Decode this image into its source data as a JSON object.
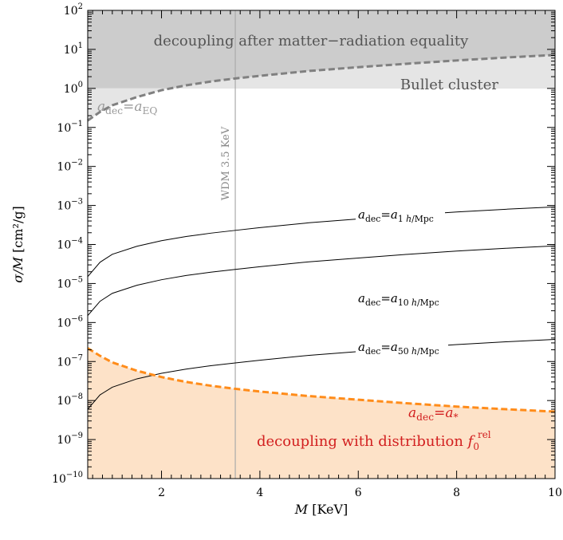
{
  "chart_data": {
    "type": "line",
    "xlabel": {
      "main": "M",
      "unit": " [KeV]"
    },
    "ylabel": {
      "main": "σ/M",
      "unit": " [cm²/g]"
    },
    "xlim": [
      0.5,
      10
    ],
    "ylim": [
      1e-10,
      100
    ],
    "yscale": "log",
    "x_ticks": [
      2,
      4,
      6,
      8,
      10
    ],
    "y_tick_exponents": [
      -10,
      -9,
      -8,
      -7,
      -6,
      -5,
      -4,
      -3,
      -2,
      -1,
      0,
      1,
      2
    ],
    "colors": {
      "top_region": "#cccccc",
      "bullet_region": "#e5e5e5",
      "bottom_region": "#fde2c8",
      "boundary_gray": "#808080",
      "boundary_orange": "#ff8c1a",
      "red_text": "#d21f1f",
      "wdm_line": "#aaaaaa"
    },
    "regions": [
      {
        "name": "decoupling after matter−radiation equality",
        "y_low": 1,
        "y_high": 100
      },
      {
        "name": "Bullet cluster",
        "y_low": 1,
        "y_high": 1
      },
      {
        "name": "decoupling with distribution",
        "y_low": 1e-10
      }
    ],
    "vertical_line": {
      "label": "WDM 3.5 KeV",
      "x": 3.5
    },
    "series": [
      {
        "label_base": "a",
        "label_sub": "dec",
        "label_rhs": "a",
        "label_rhs_sub_pre": "1 ",
        "label_rhs_sub_italic": "h",
        "label_rhs_sub_post": "/Mpc",
        "x": [
          0.5,
          0.75,
          1,
          1.5,
          2,
          2.5,
          3,
          3.5,
          4,
          5,
          6,
          7,
          8,
          9,
          10
        ],
        "y": [
          1.5e-05,
          3.5e-05,
          5.6e-05,
          9e-05,
          0.000125,
          0.00016,
          0.000195,
          0.00023,
          0.00027,
          0.00036,
          0.00045,
          0.00056,
          0.00068,
          0.0008,
          0.00092
        ]
      },
      {
        "label_base": "a",
        "label_sub": "dec",
        "label_rhs": "a",
        "label_rhs_sub_pre": "10 ",
        "label_rhs_sub_italic": "h",
        "label_rhs_sub_post": "/Mpc",
        "x": [
          0.5,
          0.75,
          1,
          1.5,
          2,
          2.5,
          3,
          3.5,
          4,
          5,
          6,
          7,
          8,
          9,
          10
        ],
        "y": [
          1.5e-06,
          3.5e-06,
          5.6e-06,
          9e-06,
          1.25e-05,
          1.6e-05,
          1.95e-05,
          2.3e-05,
          2.7e-05,
          3.6e-05,
          4.5e-05,
          5.6e-05,
          6.8e-05,
          8e-05,
          9.2e-05
        ]
      },
      {
        "label_base": "a",
        "label_sub": "dec",
        "label_rhs": "a",
        "label_rhs_sub_pre": "50 ",
        "label_rhs_sub_italic": "h",
        "label_rhs_sub_post": "/Mpc",
        "x": [
          0.5,
          0.75,
          1,
          1.5,
          2,
          2.5,
          3,
          3.5,
          4,
          5,
          6,
          7,
          8,
          9,
          10
        ],
        "y": [
          6e-09,
          1.4e-08,
          2.2e-08,
          3.6e-08,
          5e-08,
          6.4e-08,
          7.8e-08,
          9.2e-08,
          1.08e-07,
          1.44e-07,
          1.8e-07,
          2.24e-07,
          2.72e-07,
          3.2e-07,
          3.7e-07
        ]
      }
    ],
    "upper_boundary": {
      "label_base": "a",
      "label_sub": "dec",
      "label_rhs": "a",
      "label_rhs_sub": "EQ",
      "x": [
        0.5,
        0.75,
        1,
        1.5,
        2,
        2.5,
        3,
        3.5,
        4,
        5,
        6,
        7,
        8,
        9,
        10
      ],
      "y": [
        0.15,
        0.25,
        0.37,
        0.6,
        0.9,
        1.2,
        1.5,
        1.8,
        2.1,
        2.8,
        3.5,
        4.3,
        5.2,
        6.2,
        7.2
      ]
    },
    "lower_boundary": {
      "label_base": "a",
      "label_sub": "dec",
      "label_rhs": "a",
      "label_rhs_sub": "*",
      "x": [
        0.5,
        0.75,
        1,
        1.5,
        2,
        2.5,
        3,
        3.5,
        4,
        5,
        6,
        7,
        8,
        9,
        10
      ],
      "y": [
        2.2e-07,
        1.4e-07,
        9.5e-08,
        5.8e-08,
        4e-08,
        3e-08,
        2.4e-08,
        2e-08,
        1.7e-08,
        1.3e-08,
        1.05e-08,
        8.5e-09,
        7e-09,
        6e-09,
        5.2e-09
      ]
    },
    "distribution_symbol": {
      "base": "f",
      "sub": "0",
      "sup": "rel"
    }
  }
}
